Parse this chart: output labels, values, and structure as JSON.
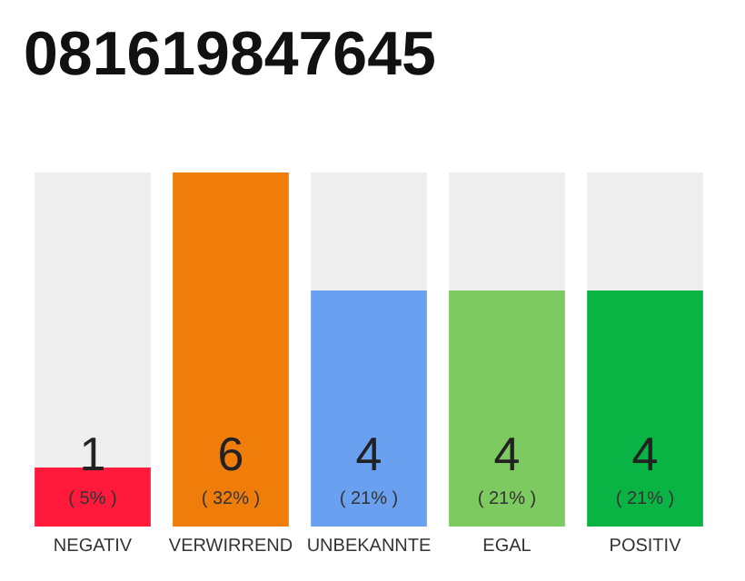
{
  "chart_data": {
    "type": "bar",
    "title": "081619847645",
    "categories": [
      "NEGATIV",
      "VERWIRREND",
      "UNBEKANNTE",
      "EGAL",
      "POSITIV"
    ],
    "values": [
      1,
      6,
      4,
      4,
      4
    ],
    "colors": [
      "#ff1a3c",
      "#f07d0a",
      "#6aa0f0",
      "#7cca60",
      "#0ab444"
    ],
    "data_labels": true,
    "annotations": [
      "( 5% )",
      "( 32% )",
      "( 21% )",
      "( 21% )",
      "( 21% )"
    ]
  }
}
